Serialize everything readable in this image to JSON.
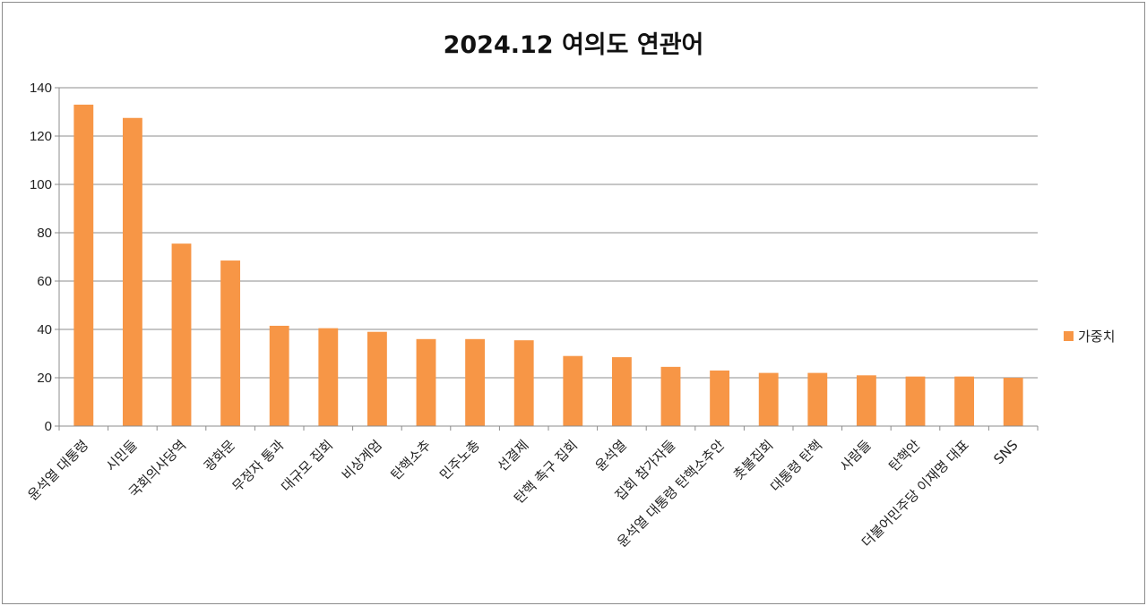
{
  "chart_data": {
    "type": "bar",
    "title": "2024.12 여의도 연관어",
    "xlabel": "",
    "ylabel": "",
    "ylim": [
      0,
      140
    ],
    "yticks": [
      0,
      20,
      40,
      60,
      80,
      100,
      120,
      140
    ],
    "grid": true,
    "legend_position": "right",
    "bar_color": "#F79646",
    "categories": [
      "윤석열 대통령",
      "시민들",
      "국회의사당역",
      "광화문",
      "무정자 통과",
      "대규모 집회",
      "비상계엄",
      "탄핵소추",
      "민주노총",
      "선결제",
      "탄핵 촉구 집회",
      "윤석열",
      "집회 참가자들",
      "윤석열 대통령 탄핵소추안",
      "촛불집회",
      "대통령 탄핵",
      "사람들",
      "탄핵안",
      "더불어민주당 이재명 대표",
      "SNS"
    ],
    "series": [
      {
        "name": "가중치",
        "values": [
          133,
          127.5,
          75.5,
          68.5,
          41.5,
          40.5,
          39,
          36,
          36,
          35.5,
          29,
          28.5,
          24.5,
          23,
          22,
          22,
          21,
          20.5,
          20.5,
          20
        ]
      }
    ]
  }
}
